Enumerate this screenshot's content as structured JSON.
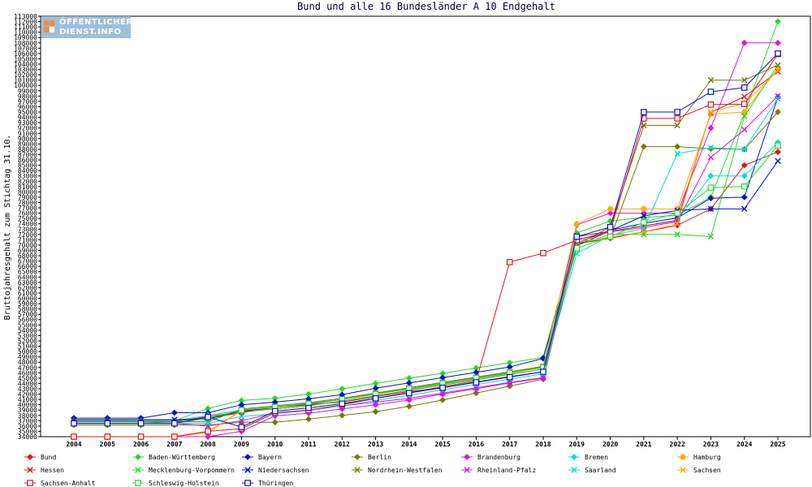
{
  "logo": {
    "line1": "ÖFFENTLICHER",
    "line2": "DIENST.INFO"
  },
  "chart_data": {
    "type": "line",
    "title": "Bund und alle 16 Bundesländer A 10 Endgehalt",
    "xlabel": "",
    "ylabel": "Bruttojahresgehalt zum Stichtag 31.10.",
    "ylim": [
      34000,
      113000
    ],
    "ytick_step": 1000,
    "categories": [
      "2004",
      "2005",
      "2006",
      "2007",
      "2008",
      "2009",
      "2010",
      "2011",
      "2012",
      "2013",
      "2014",
      "2015",
      "2016",
      "2017",
      "2018",
      "2019",
      "2020",
      "2021",
      "2022",
      "2023",
      "2024",
      "2025"
    ],
    "grid": false,
    "legend_position": "bottom",
    "series": [
      {
        "name": "Bund",
        "color": "#e8101c",
        "marker": "diamond",
        "values": [
          37000,
          37000,
          37000,
          37000,
          37500,
          38500,
          39500,
          40000,
          40500,
          41500,
          42500,
          43200,
          44300,
          45300,
          46200,
          70200,
          71300,
          72500,
          73700,
          76800,
          85000,
          87500
        ]
      },
      {
        "name": "Baden-Württemberg",
        "color": "#22dd22",
        "marker": "diamond",
        "values": [
          37000,
          37000,
          37000,
          37000,
          39300,
          40800,
          41200,
          42000,
          43000,
          44000,
          45000,
          45900,
          46900,
          47900,
          48900,
          72300,
          74500,
          75200,
          75600,
          79000,
          94700,
          112000
        ]
      },
      {
        "name": "Bayern",
        "color": "#0010d8",
        "marker": "diamond",
        "values": [
          37500,
          37500,
          37500,
          38500,
          38500,
          40000,
          40500,
          41100,
          41900,
          43100,
          44100,
          45100,
          46100,
          47100,
          48700,
          70400,
          72800,
          74100,
          75100,
          78800,
          79000,
          97800
        ]
      },
      {
        "name": "Berlin",
        "color": "#777700",
        "marker": "diamond",
        "values": [
          36200,
          36200,
          36200,
          36200,
          36200,
          36700,
          36700,
          37300,
          38000,
          38700,
          39700,
          40900,
          42200,
          43500,
          44800,
          70300,
          71300,
          88500,
          88500,
          88100,
          88000,
          95000
        ]
      },
      {
        "name": "Brandenburg",
        "color": "#e010e0",
        "marker": "diamond",
        "values": [
          34000,
          34000,
          34000,
          34000,
          34000,
          35000,
          37900,
          38400,
          39200,
          40000,
          40900,
          42000,
          43000,
          44100,
          45000,
          73800,
          76000,
          76000,
          76000,
          92000,
          108000,
          108000
        ]
      },
      {
        "name": "Bremen",
        "color": "#00dddd",
        "marker": "diamond",
        "values": [
          37000,
          37000,
          37000,
          37000,
          38000,
          39000,
          39600,
          40200,
          41000,
          42100,
          42900,
          43900,
          44900,
          45900,
          47100,
          71600,
          72600,
          73600,
          74700,
          83000,
          83000,
          89300
        ]
      },
      {
        "name": "Hamburg",
        "color": "#ffaa00",
        "marker": "circle",
        "values": [
          34000,
          34000,
          34000,
          34000,
          35000,
          38800,
          39500,
          40100,
          41000,
          42100,
          43100,
          44100,
          45100,
          46200,
          47200,
          74000,
          76800,
          76800,
          76800,
          94600,
          95000,
          103200
        ]
      },
      {
        "name": "Hessen",
        "color": "#e8101c",
        "marker": "x",
        "values": [
          36800,
          36800,
          36800,
          36800,
          37800,
          38700,
          39200,
          39800,
          40700,
          41700,
          42700,
          43700,
          44700,
          45700,
          46700,
          71600,
          72600,
          73600,
          74600,
          94900,
          97900,
          102600
        ]
      },
      {
        "name": "Mecklenburg-Vorpommern",
        "color": "#22dd22",
        "marker": "x",
        "values": [
          37200,
          37200,
          36800,
          36500,
          37500,
          38800,
          39200,
          39800,
          40700,
          41700,
          42700,
          43700,
          44700,
          45700,
          46700,
          70000,
          72000,
          72000,
          72000,
          71600,
          94200,
          103800
        ]
      },
      {
        "name": "Niedersachsen",
        "color": "#0010d8",
        "marker": "x",
        "values": [
          37200,
          37200,
          37200,
          37200,
          37300,
          38800,
          39500,
          40100,
          41000,
          42000,
          43000,
          44000,
          45000,
          46000,
          47000,
          69900,
          72700,
          75500,
          76500,
          76800,
          76800,
          85800
        ]
      },
      {
        "name": "Nordrhein-Westfalen",
        "color": "#777700",
        "marker": "x",
        "values": [
          36800,
          36800,
          36800,
          36800,
          36800,
          39200,
          39800,
          40400,
          41200,
          42200,
          43200,
          44200,
          45200,
          46200,
          47200,
          70100,
          73400,
          92500,
          92500,
          101000,
          101000,
          103800
        ]
      },
      {
        "name": "Rheinland-Pfalz",
        "color": "#e010e0",
        "marker": "x",
        "values": [
          36500,
          36500,
          36500,
          36500,
          36000,
          37000,
          38500,
          39000,
          39800,
          40500,
          41200,
          42200,
          43200,
          44200,
          45100,
          71000,
          72500,
          73300,
          74400,
          86500,
          91700,
          98000
        ]
      },
      {
        "name": "Saarland",
        "color": "#00dddd",
        "marker": "x",
        "values": [
          36500,
          36500,
          36500,
          36500,
          36500,
          37800,
          38300,
          38900,
          39800,
          40800,
          41800,
          42800,
          43800,
          44800,
          45800,
          68400,
          71800,
          73100,
          87200,
          88300,
          88000,
          97500
        ]
      },
      {
        "name": "Sachsen",
        "color": "#ffaa00",
        "marker": "x",
        "values": [
          34000,
          34000,
          34000,
          34000,
          34800,
          39000,
          39500,
          40200,
          41000,
          42000,
          43000,
          44000,
          45000,
          46000,
          47000,
          70600,
          71500,
          72500,
          74000,
          95000,
          96600,
          102800
        ]
      },
      {
        "name": "Sachsen-Anhalt",
        "color": "#e8101c",
        "marker": "square",
        "values": [
          34000,
          34000,
          34000,
          34000,
          35000,
          35500,
          38500,
          39000,
          40000,
          41200,
          42300,
          43400,
          44500,
          66800,
          68500,
          70900,
          72600,
          93800,
          93800,
          96400,
          96500,
          105900
        ]
      },
      {
        "name": "Schleswig-Holstein",
        "color": "#22dd22",
        "marker": "square",
        "values": [
          36500,
          36500,
          36500,
          36500,
          37500,
          39000,
          39600,
          40200,
          41000,
          42000,
          43000,
          44000,
          45000,
          46000,
          47000,
          69400,
          71600,
          74300,
          76000,
          80800,
          81000,
          88700
        ]
      },
      {
        "name": "Thüringen",
        "color": "#0010d8",
        "marker": "square",
        "values": [
          36500,
          36500,
          36500,
          36500,
          37700,
          35800,
          38800,
          39400,
          40200,
          41200,
          42200,
          43200,
          44200,
          45200,
          46200,
          71600,
          73400,
          95000,
          95000,
          98800,
          99600,
          106000
        ]
      }
    ]
  }
}
